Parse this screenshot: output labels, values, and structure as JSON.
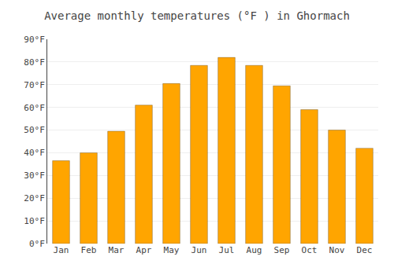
{
  "chart_data": {
    "type": "bar",
    "title": "Average monthly temperatures (°F ) in Ghormach",
    "categories": [
      "Jan",
      "Feb",
      "Mar",
      "Apr",
      "May",
      "Jun",
      "Jul",
      "Aug",
      "Sep",
      "Oct",
      "Nov",
      "Dec"
    ],
    "values": [
      36.5,
      40.0,
      49.5,
      61.0,
      70.5,
      78.5,
      82.0,
      78.5,
      69.5,
      59.0,
      50.0,
      42.0
    ],
    "color": "#FFA500",
    "ylim": [
      0,
      90
    ],
    "yticks": [
      {
        "value": 0,
        "label": "0°F"
      },
      {
        "value": 10,
        "label": "10°F"
      },
      {
        "value": 20,
        "label": "20°F"
      },
      {
        "value": 30,
        "label": "30°F"
      },
      {
        "value": 40,
        "label": "40°F"
      },
      {
        "value": 50,
        "label": "50°F"
      },
      {
        "value": 60,
        "label": "60°F"
      },
      {
        "value": 70,
        "label": "70°F"
      },
      {
        "value": 80,
        "label": "80°F"
      },
      {
        "value": 90,
        "label": "90°F"
      }
    ],
    "grid": true
  }
}
